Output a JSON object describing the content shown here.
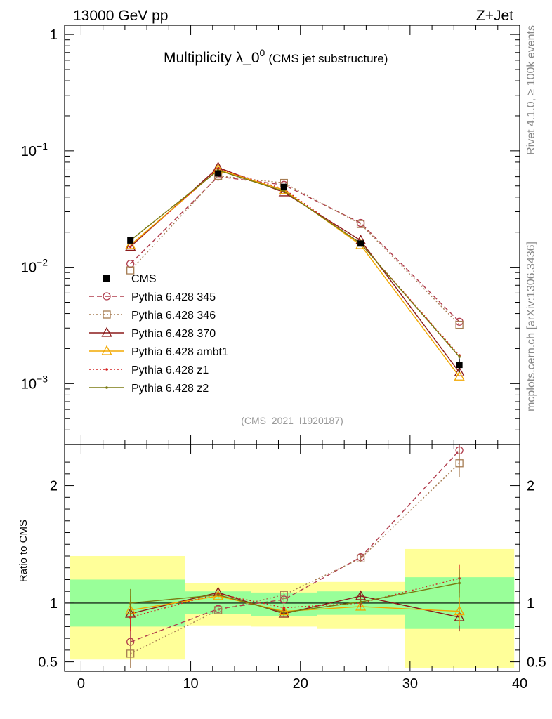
{
  "header": {
    "energy": "13000 GeV pp",
    "process": "Z+Jet",
    "side_top": "Rivet 4.1.0, ≥ 100k events",
    "side_bottom": "mcplots.cern.ch [arXiv:1306.3436]"
  },
  "chart_data": {
    "type": "line",
    "title": "Multiplicity λ_0",
    "title_sup": "0",
    "subtitle": "(CMS jet substructure)",
    "analysis_id": "(CMS_2021_I1920187)",
    "x": [
      4.5,
      12.5,
      18.5,
      25.5,
      34.5
    ],
    "bin_edges": [
      -1,
      9.5,
      15.5,
      21.5,
      29.5,
      39.5
    ],
    "xlim": [
      -1.5,
      40
    ],
    "xticks": [
      0,
      10,
      20,
      30,
      40
    ],
    "main": {
      "yscale": "log",
      "ylim": [
        0.0003,
        1.2
      ],
      "yticks": [
        {
          "value": 1,
          "label": "1"
        },
        {
          "value": 0.1,
          "label": "10",
          "sup": "−1"
        },
        {
          "value": 0.01,
          "label": "10",
          "sup": "−2"
        },
        {
          "value": 0.001,
          "label": "10",
          "sup": "−3"
        }
      ],
      "data": {
        "name": "CMS",
        "values": [
          0.017,
          0.064,
          0.049,
          0.016,
          0.00145
        ],
        "errors": [
          0.001,
          0.002,
          0.0015,
          0.0006,
          0.0002
        ]
      },
      "series": [
        {
          "name": "Pythia 6.428 345",
          "color": "#b03c4c",
          "dash": "7,4",
          "marker": "circle",
          "values": [
            0.0107,
            0.06,
            0.051,
            0.024,
            0.0034
          ]
        },
        {
          "name": "Pythia 6.428 346",
          "color": "#a67c52",
          "dash": "2,3",
          "marker": "square",
          "values": [
            0.0094,
            0.061,
            0.053,
            0.0235,
            0.0032
          ]
        },
        {
          "name": "Pythia 6.428 370",
          "color": "#8b1a1a",
          "dash": "",
          "marker": "triangle",
          "values": [
            0.015,
            0.072,
            0.044,
            0.017,
            0.00125
          ]
        },
        {
          "name": "Pythia 6.428 ambt1",
          "color": "#f2a800",
          "dash": "",
          "marker": "triangle",
          "values": [
            0.0155,
            0.069,
            0.046,
            0.0155,
            0.00115
          ]
        },
        {
          "name": "Pythia 6.428 z1",
          "color": "#d42020",
          "dash": "2,3",
          "marker": "dot",
          "values": [
            0.015,
            0.07,
            0.047,
            0.016,
            0.00175
          ]
        },
        {
          "name": "Pythia 6.428 z2",
          "color": "#7a7a10",
          "dash": "",
          "marker": "dot",
          "values": [
            0.017,
            0.068,
            0.045,
            0.016,
            0.0017
          ]
        }
      ]
    },
    "ratio": {
      "ylabel": "Ratio to CMS",
      "ylim": [
        0.42,
        2.35
      ],
      "yticks": [
        {
          "value": 0.5,
          "label": "0.5"
        },
        {
          "value": 1,
          "label": "1"
        },
        {
          "value": 2,
          "label": "2"
        }
      ],
      "band_inner": [
        [
          0.8,
          1.2
        ],
        [
          0.91,
          1.1
        ],
        [
          0.89,
          1.09
        ],
        [
          0.9,
          1.1
        ],
        [
          0.78,
          1.22
        ]
      ],
      "band_outer": [
        [
          0.52,
          1.4
        ],
        [
          0.81,
          1.17
        ],
        [
          0.8,
          1.17
        ],
        [
          0.78,
          1.18
        ],
        [
          0.45,
          1.46
        ]
      ],
      "band_inner_color": "#99ff99",
      "band_outer_color": "#ffff99",
      "series_values": [
        [
          0.67,
          0.95,
          1.03,
          1.39,
          2.3
        ],
        [
          0.57,
          0.94,
          1.07,
          1.38,
          2.19
        ],
        [
          0.91,
          1.09,
          0.91,
          1.06,
          0.88
        ],
        [
          0.94,
          1.06,
          0.93,
          0.97,
          0.93
        ],
        [
          0.88,
          1.08,
          0.96,
          1.0,
          1.21
        ],
        [
          1.0,
          1.07,
          0.92,
          1.01,
          1.17
        ]
      ]
    }
  }
}
